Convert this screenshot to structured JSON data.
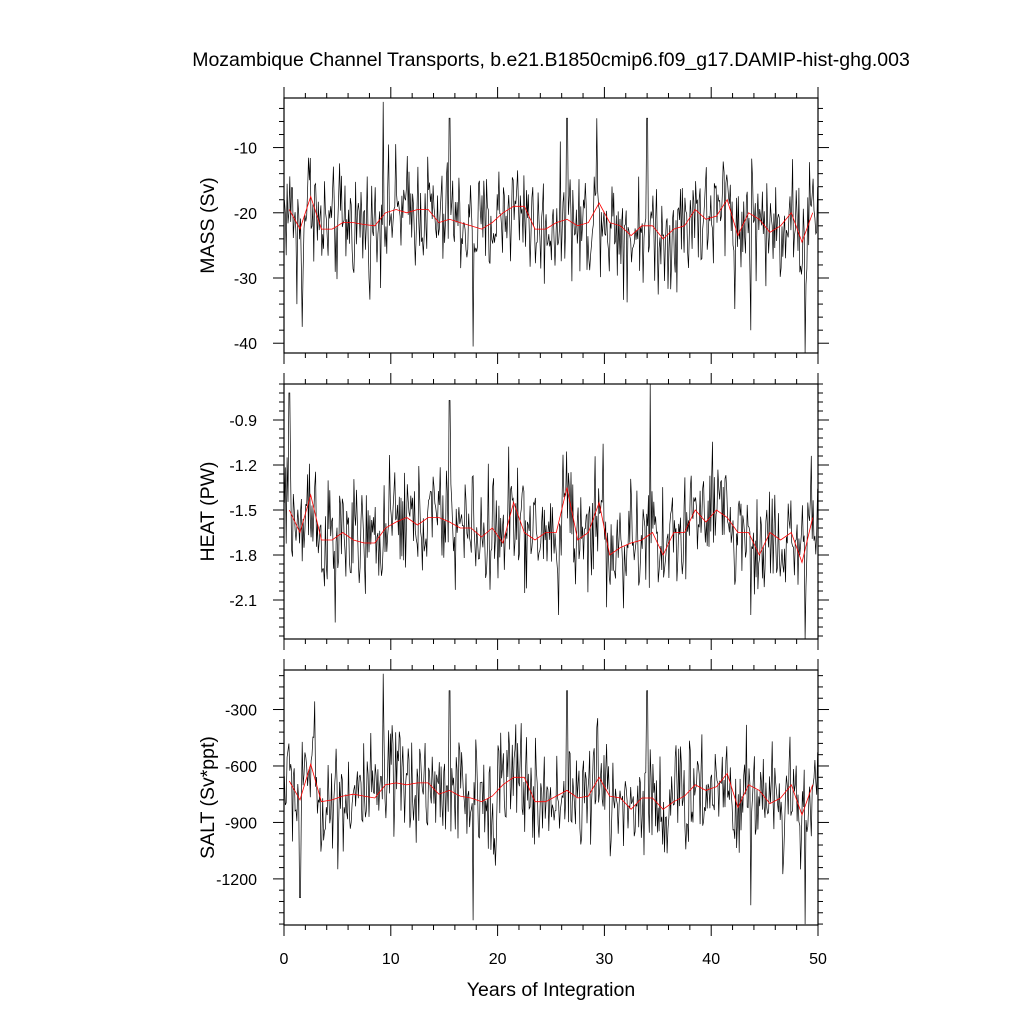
{
  "title": "Mozambique Channel Transports, b.e21.B1850cmip6.f09_g17.DAMIP-hist-ghg.003",
  "colors": {
    "monthly": "#000000",
    "annual": "#ff0000"
  },
  "chart_data": [
    {
      "type": "line",
      "panel": "MASS",
      "ylabel": "MASS (Sv)",
      "xlabel": "",
      "xlim": [
        0,
        50
      ],
      "ylim": [
        -41.5,
        -2.4
      ],
      "yticks": [
        -10,
        -20,
        -30,
        -40
      ],
      "ytick_labels": [
        "-10",
        "-20",
        "-30",
        "-40"
      ],
      "annual_mean": {
        "x": [
          0.5,
          1.5,
          2.5,
          3.5,
          4.5,
          5.5,
          6.5,
          7.5,
          8.5,
          9.5,
          10.5,
          11.5,
          12.5,
          13.5,
          14.5,
          15.5,
          16.5,
          17.5,
          18.5,
          19.5,
          20.5,
          21.5,
          22.5,
          23.5,
          24.5,
          25.5,
          26.5,
          27.5,
          28.5,
          29.5,
          30.5,
          31.5,
          32.5,
          33.5,
          34.5,
          35.5,
          36.5,
          37.5,
          38.5,
          39.5,
          40.5,
          41.5,
          42.5,
          43.5,
          44.5,
          45.5,
          46.5,
          47.5,
          48.5,
          49.5
        ],
        "y": [
          -19.5,
          -22.5,
          -17.5,
          -22.5,
          -22.5,
          -21.5,
          -21.5,
          -21.8,
          -22.0,
          -20.0,
          -19.5,
          -20.0,
          -19.5,
          -19.5,
          -21.5,
          -21.0,
          -21.5,
          -22.0,
          -22.5,
          -21.5,
          -20.0,
          -19.0,
          -19.0,
          -22.5,
          -22.5,
          -21.5,
          -21.0,
          -22.0,
          -21.5,
          -18.5,
          -21.5,
          -22.0,
          -23.5,
          -22.0,
          -22.0,
          -24.0,
          -22.5,
          -22.0,
          -19.5,
          -21.0,
          -20.5,
          -18.0,
          -23.5,
          -20.0,
          -21.0,
          -23.0,
          -22.0,
          -20.0,
          -24.5,
          -20.0
        ]
      },
      "monthly": {
        "base": -21.5,
        "amplitude": 5.5,
        "spikes": [
          [
            1.2,
            -34
          ],
          [
            1.7,
            -37.5
          ],
          [
            2.4,
            -15
          ],
          [
            9.3,
            -3
          ],
          [
            15.5,
            -5.5
          ],
          [
            17.7,
            -40.5
          ],
          [
            26.5,
            -5.5
          ],
          [
            29.3,
            -5.5
          ],
          [
            34.0,
            -5.5
          ],
          [
            43.7,
            -38
          ],
          [
            48.8,
            -41.5
          ]
        ]
      }
    },
    {
      "type": "line",
      "panel": "HEAT",
      "ylabel": "HEAT (PW)",
      "xlabel": "",
      "xlim": [
        0,
        50
      ],
      "ylim": [
        -2.36,
        -0.66
      ],
      "yticks": [
        -0.9,
        -1.2,
        -1.5,
        -1.8,
        -2.1
      ],
      "ytick_labels": [
        "-0.9",
        "-1.2",
        "-1.5",
        "-1.8",
        "-2.1"
      ],
      "annual_mean": {
        "x": [
          0.5,
          1.5,
          2.5,
          3.5,
          4.5,
          5.5,
          6.5,
          7.5,
          8.5,
          9.5,
          10.5,
          11.5,
          12.5,
          13.5,
          14.5,
          15.5,
          16.5,
          17.5,
          18.5,
          19.5,
          20.5,
          21.5,
          22.5,
          23.5,
          24.5,
          25.5,
          26.5,
          27.5,
          28.5,
          29.5,
          30.5,
          31.5,
          32.5,
          33.5,
          34.5,
          35.5,
          36.5,
          37.5,
          38.5,
          39.5,
          40.5,
          41.5,
          42.5,
          43.5,
          44.5,
          45.5,
          46.5,
          47.5,
          48.5,
          49.5
        ],
        "y": [
          -1.5,
          -1.65,
          -1.4,
          -1.7,
          -1.7,
          -1.65,
          -1.7,
          -1.72,
          -1.72,
          -1.62,
          -1.58,
          -1.55,
          -1.6,
          -1.55,
          -1.55,
          -1.58,
          -1.62,
          -1.62,
          -1.68,
          -1.62,
          -1.72,
          -1.45,
          -1.65,
          -1.7,
          -1.65,
          -1.65,
          -1.35,
          -1.7,
          -1.65,
          -1.45,
          -1.8,
          -1.75,
          -1.72,
          -1.7,
          -1.65,
          -1.8,
          -1.65,
          -1.65,
          -1.5,
          -1.58,
          -1.5,
          -1.55,
          -1.65,
          -1.65,
          -1.8,
          -1.65,
          -1.7,
          -1.65,
          -1.85,
          -1.55
        ]
      },
      "monthly": {
        "base": -1.65,
        "amplitude": 0.24,
        "spikes": [
          [
            0.5,
            -0.72
          ],
          [
            4.8,
            -2.25
          ],
          [
            15.5,
            -0.77
          ],
          [
            25.7,
            -2.2
          ],
          [
            34.3,
            -0.66
          ],
          [
            43.7,
            -2.2
          ],
          [
            48.8,
            -2.36
          ]
        ]
      }
    },
    {
      "type": "line",
      "panel": "SALT",
      "ylabel": "SALT (Sv*ppt)",
      "xlabel": "Years of Integration",
      "xlim": [
        0,
        50
      ],
      "ylim": [
        -1445,
        -90
      ],
      "yticks": [
        -300,
        -600,
        -900,
        -1200
      ],
      "ytick_labels": [
        "-300",
        "-600",
        "-900",
        "-1200"
      ],
      "xticks": [
        0,
        10,
        20,
        30,
        40,
        50
      ],
      "xtick_labels": [
        "0",
        "10",
        "20",
        "30",
        "40",
        "50"
      ],
      "annual_mean": {
        "x": [
          0.5,
          1.5,
          2.5,
          3.5,
          4.5,
          5.5,
          6.5,
          7.5,
          8.5,
          9.5,
          10.5,
          11.5,
          12.5,
          13.5,
          14.5,
          15.5,
          16.5,
          17.5,
          18.5,
          19.5,
          20.5,
          21.5,
          22.5,
          23.5,
          24.5,
          25.5,
          26.5,
          27.5,
          28.5,
          29.5,
          30.5,
          31.5,
          32.5,
          33.5,
          34.5,
          35.5,
          36.5,
          37.5,
          38.5,
          39.5,
          40.5,
          41.5,
          42.5,
          43.5,
          44.5,
          45.5,
          46.5,
          47.5,
          48.5,
          49.5
        ],
        "y": [
          -680,
          -780,
          -590,
          -790,
          -780,
          -760,
          -750,
          -760,
          -770,
          -700,
          -690,
          -700,
          -690,
          -690,
          -750,
          -730,
          -760,
          -770,
          -790,
          -760,
          -700,
          -660,
          -660,
          -790,
          -790,
          -760,
          -730,
          -770,
          -760,
          -660,
          -760,
          -770,
          -830,
          -770,
          -770,
          -830,
          -790,
          -760,
          -700,
          -730,
          -710,
          -640,
          -820,
          -700,
          -730,
          -800,
          -770,
          -700,
          -860,
          -700
        ]
      },
      "monthly": {
        "base": -760,
        "amplitude": 195,
        "spikes": [
          [
            1.5,
            -1300
          ],
          [
            9.3,
            -110
          ],
          [
            15.5,
            -200
          ],
          [
            17.7,
            -1420
          ],
          [
            26.5,
            -200
          ],
          [
            34.0,
            -200
          ],
          [
            43.7,
            -1340
          ],
          [
            48.8,
            -1440
          ]
        ]
      }
    }
  ]
}
